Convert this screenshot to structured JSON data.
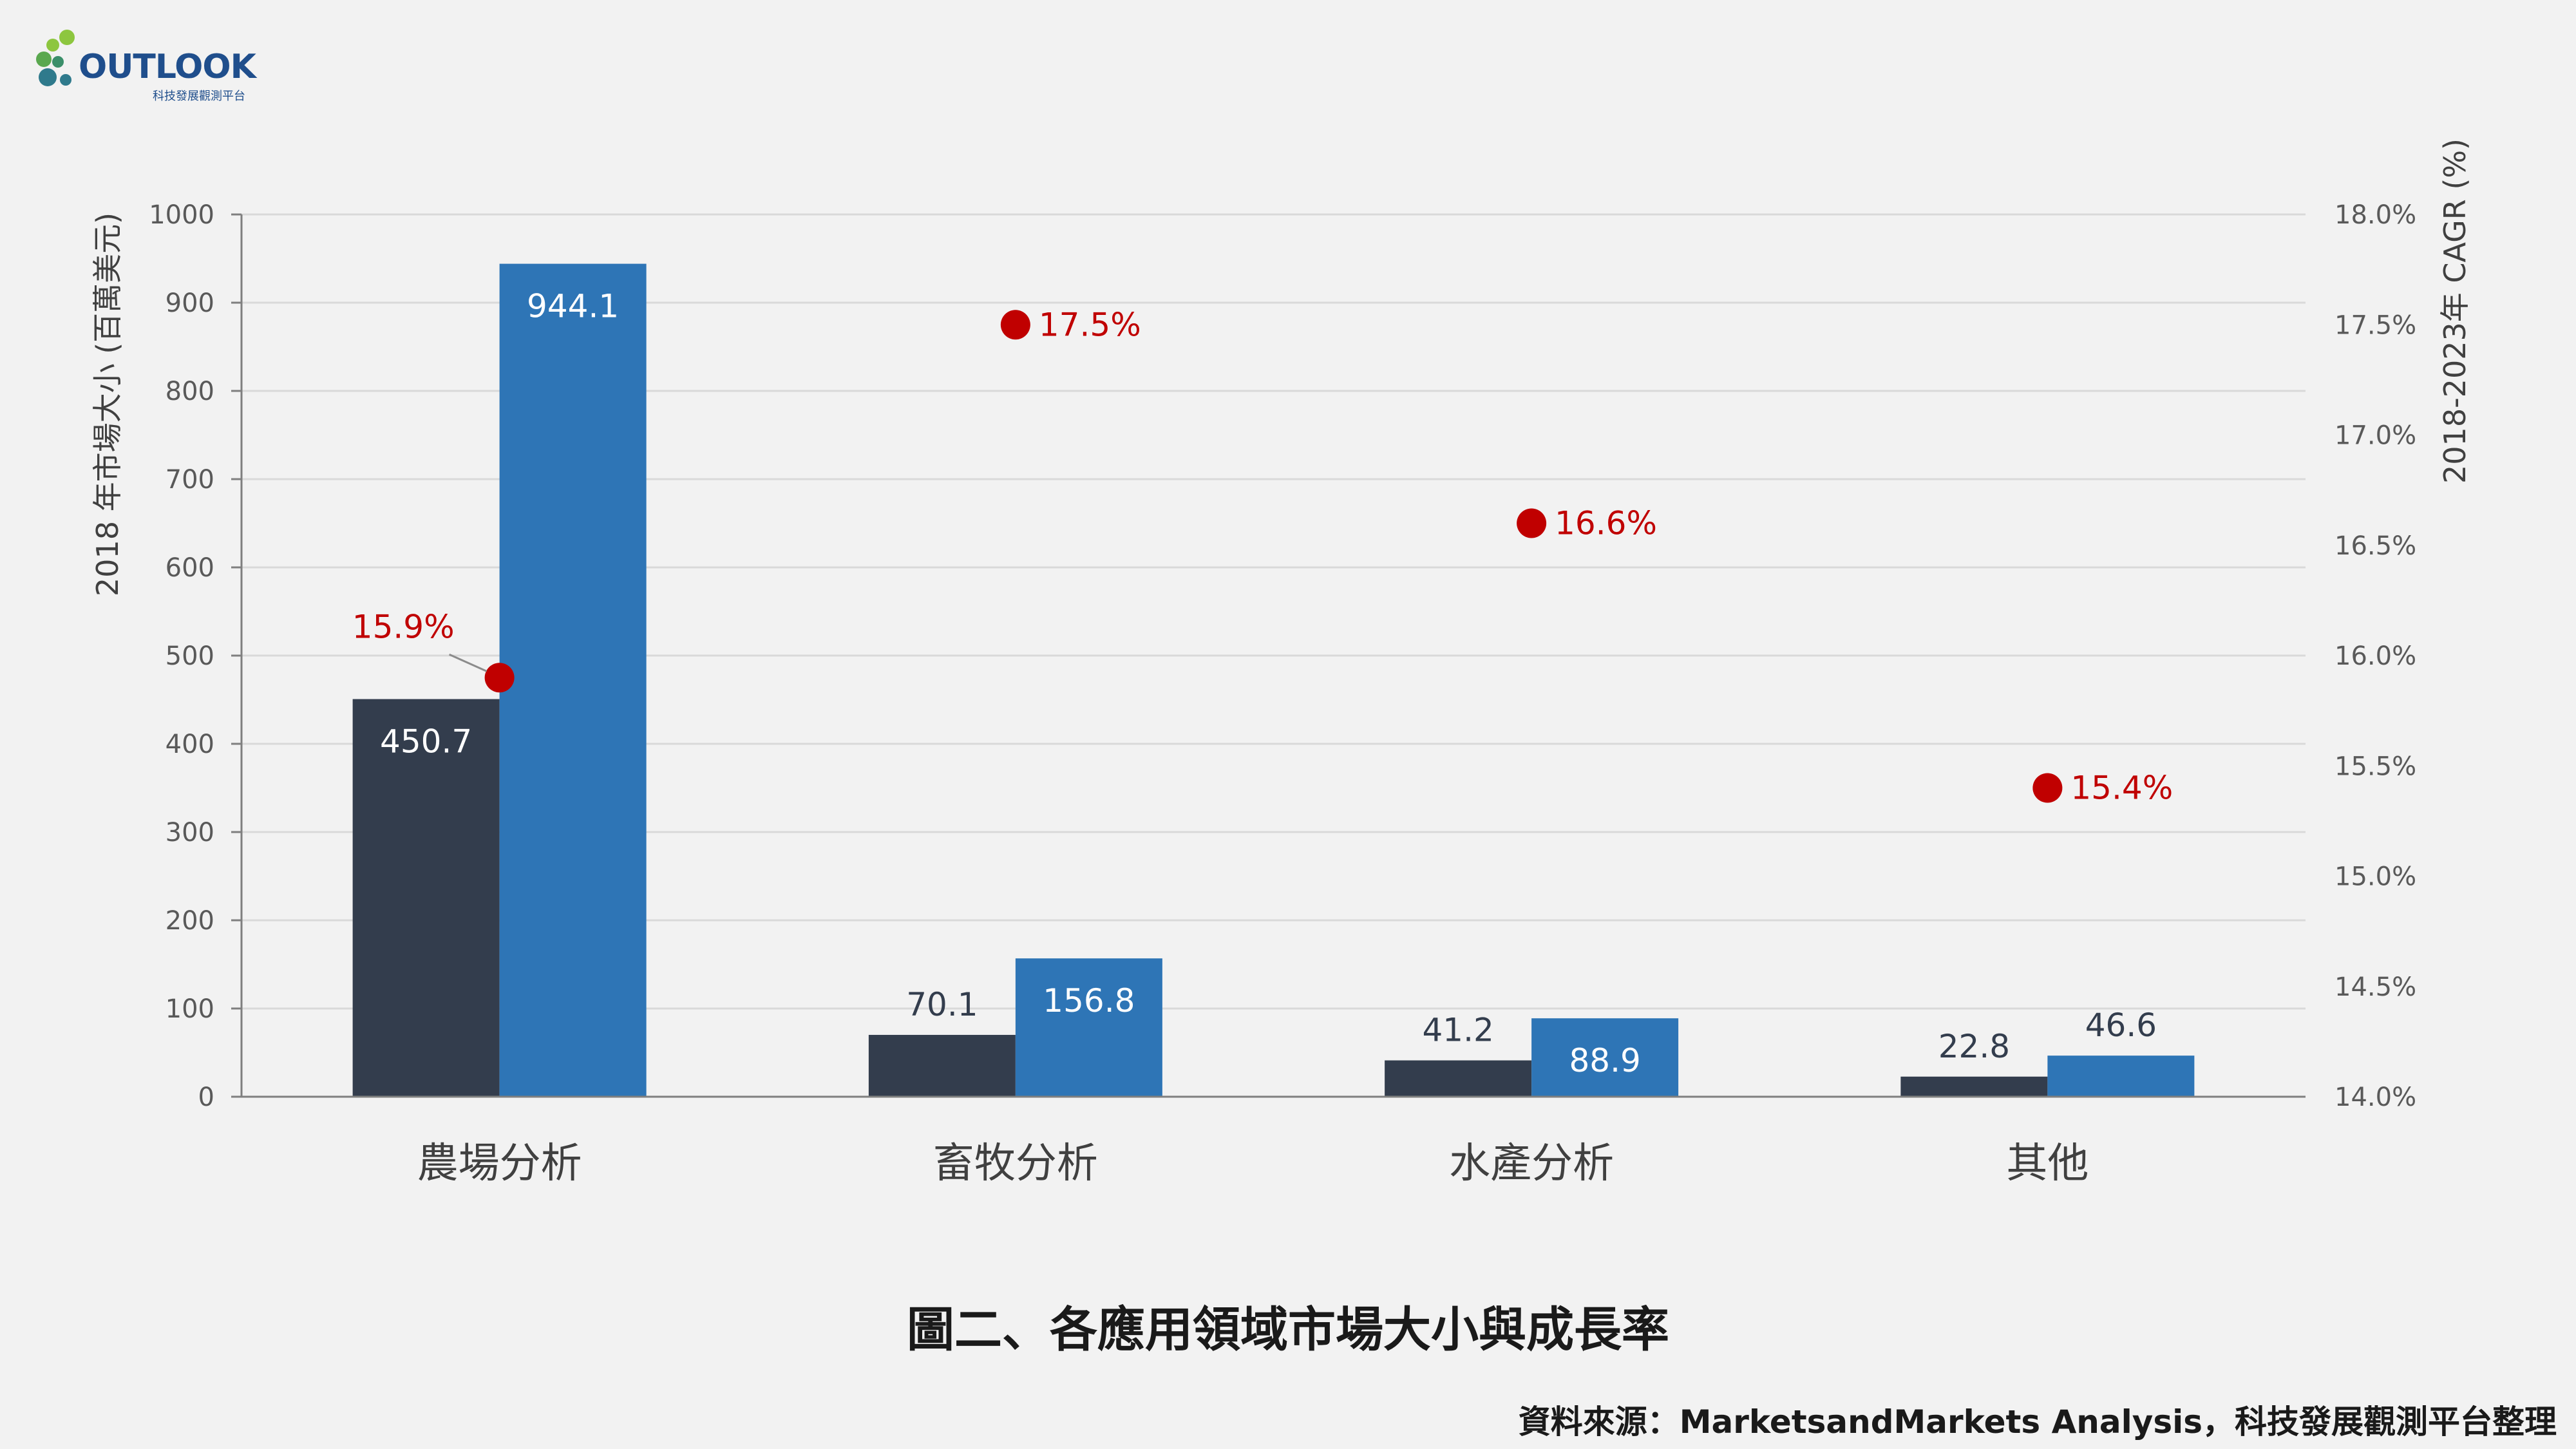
{
  "logo": {
    "word": "OUTLOOK",
    "subtitle": "科技發展觀測平台"
  },
  "colors": {
    "series_2018": "#333d4d",
    "series_2023": "#2e75b6",
    "cagr_marker": "#c00000",
    "background": "#f2f2f2"
  },
  "title": "圖二、各應用領域市場大小與成長率",
  "source": "資料來源：MarketsandMarkets Analysis，科技發展觀測平台整理",
  "chart_data": {
    "type": "bar",
    "categories": [
      "農場分析",
      "畜牧分析",
      "水產分析",
      "其他"
    ],
    "series": [
      {
        "values": [
          450.7,
          70.1,
          41.2,
          22.8
        ]
      },
      {
        "values": [
          944.1,
          156.8,
          88.9,
          46.6
        ]
      }
    ],
    "cagr": {
      "type": "scatter",
      "values": [
        15.9,
        17.5,
        16.6,
        15.4
      ],
      "labels": [
        "15.9%",
        "17.5%",
        "16.6%",
        "15.4%"
      ]
    },
    "ylabel": "2018 年市場大小 (百萬美元)",
    "y2label": "2018-2023年 CAGR (%)",
    "ylim": [
      0,
      1000
    ],
    "yticks": [
      "0",
      "100",
      "200",
      "300",
      "400",
      "500",
      "600",
      "700",
      "800",
      "900",
      "1000"
    ],
    "y2lim": [
      14.0,
      18.0
    ],
    "y2ticks": [
      "14.0%",
      "14.5%",
      "15.0%",
      "15.5%",
      "16.0%",
      "16.5%",
      "17.0%",
      "17.5%",
      "18.0%"
    ],
    "grid": true
  }
}
